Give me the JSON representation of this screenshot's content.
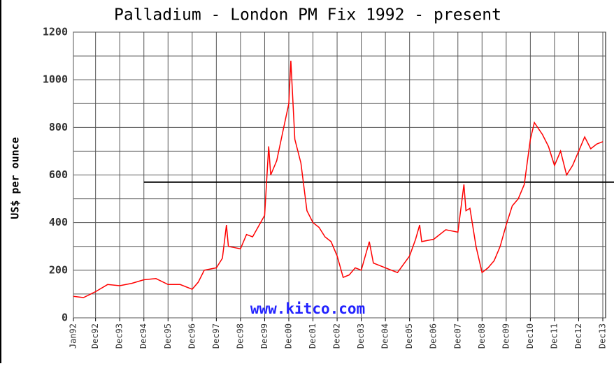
{
  "chart_data": {
    "type": "line",
    "title": "Palladium - London PM Fix 1992 - present",
    "y_label": "US$ per ounce",
    "watermark": "www.kitco.com",
    "x": [
      "1992-01",
      "1992-06",
      "1992-12",
      "1993-06",
      "1993-12",
      "1994-06",
      "1994-12",
      "1995-06",
      "1995-12",
      "1996-06",
      "1996-12",
      "1997-03",
      "1997-06",
      "1997-12",
      "1998-03",
      "1998-05",
      "1998-06",
      "1998-12",
      "1999-03",
      "1999-06",
      "1999-12",
      "2000-02",
      "2000-03",
      "2000-06",
      "2000-09",
      "2000-12",
      "2001-01",
      "2001-03",
      "2001-06",
      "2001-09",
      "2001-12",
      "2002-03",
      "2002-06",
      "2002-09",
      "2002-12",
      "2003-03",
      "2003-06",
      "2003-09",
      "2003-12",
      "2004-04",
      "2004-06",
      "2004-12",
      "2005-06",
      "2005-12",
      "2006-03",
      "2006-05",
      "2006-06",
      "2006-12",
      "2007-06",
      "2007-12",
      "2008-03",
      "2008-04",
      "2008-06",
      "2008-09",
      "2008-12",
      "2009-03",
      "2009-06",
      "2009-09",
      "2009-12",
      "2010-03",
      "2010-06",
      "2010-09",
      "2010-12",
      "2011-02",
      "2011-06",
      "2011-09",
      "2011-12",
      "2012-03",
      "2012-06",
      "2012-09",
      "2012-12",
      "2013-03",
      "2013-06",
      "2013-09",
      "2013-12"
    ],
    "series": [
      {
        "name": "Palladium",
        "color": "#ff0000",
        "values": [
          90,
          85,
          110,
          140,
          135,
          145,
          160,
          165,
          140,
          140,
          120,
          150,
          200,
          210,
          250,
          390,
          300,
          290,
          350,
          340,
          430,
          720,
          600,
          660,
          780,
          900,
          1080,
          750,
          650,
          450,
          400,
          380,
          340,
          320,
          260,
          170,
          180,
          210,
          200,
          320,
          230,
          210,
          190,
          260,
          330,
          390,
          320,
          330,
          370,
          360,
          560,
          450,
          460,
          300,
          190,
          210,
          240,
          300,
          390,
          470,
          500,
          560,
          750,
          820,
          770,
          720,
          640,
          700,
          600,
          640,
          700,
          760,
          710,
          730,
          740
        ]
      }
    ],
    "reference_line": {
      "value": 570,
      "from": "1994-12",
      "color": "#000000"
    },
    "xlim": [
      "1992-01",
      "2013-12"
    ],
    "xticks": [
      {
        "value": "1992-01",
        "label": "Jan92"
      },
      {
        "value": "1992-12",
        "label": "Dec92"
      },
      {
        "value": "1993-12",
        "label": "Dec93"
      },
      {
        "value": "1994-12",
        "label": "Dec94"
      },
      {
        "value": "1995-12",
        "label": "Dec95"
      },
      {
        "value": "1996-12",
        "label": "Dec96"
      },
      {
        "value": "1997-12",
        "label": "Dec97"
      },
      {
        "value": "1998-12",
        "label": "Dec98"
      },
      {
        "value": "1999-12",
        "label": "Dec99"
      },
      {
        "value": "2000-12",
        "label": "Dec00"
      },
      {
        "value": "2001-12",
        "label": "Dec01"
      },
      {
        "value": "2002-12",
        "label": "Dec02"
      },
      {
        "value": "2003-12",
        "label": "Dec03"
      },
      {
        "value": "2004-12",
        "label": "Dec04"
      },
      {
        "value": "2005-12",
        "label": "Dec05"
      },
      {
        "value": "2006-12",
        "label": "Dec06"
      },
      {
        "value": "2007-12",
        "label": "Dec07"
      },
      {
        "value": "2008-12",
        "label": "Dec08"
      },
      {
        "value": "2009-12",
        "label": "Dec09"
      },
      {
        "value": "2010-12",
        "label": "Dec10"
      },
      {
        "value": "2011-12",
        "label": "Dec11"
      },
      {
        "value": "2012-12",
        "label": "Dec12"
      },
      {
        "value": "2013-12",
        "label": "Dec13"
      }
    ],
    "ylim": [
      0,
      1200
    ],
    "yticks": [
      0,
      200,
      400,
      600,
      800,
      1000,
      1200
    ],
    "yminor": [
      100,
      300,
      500,
      700,
      900,
      1100
    ],
    "grid": true
  }
}
